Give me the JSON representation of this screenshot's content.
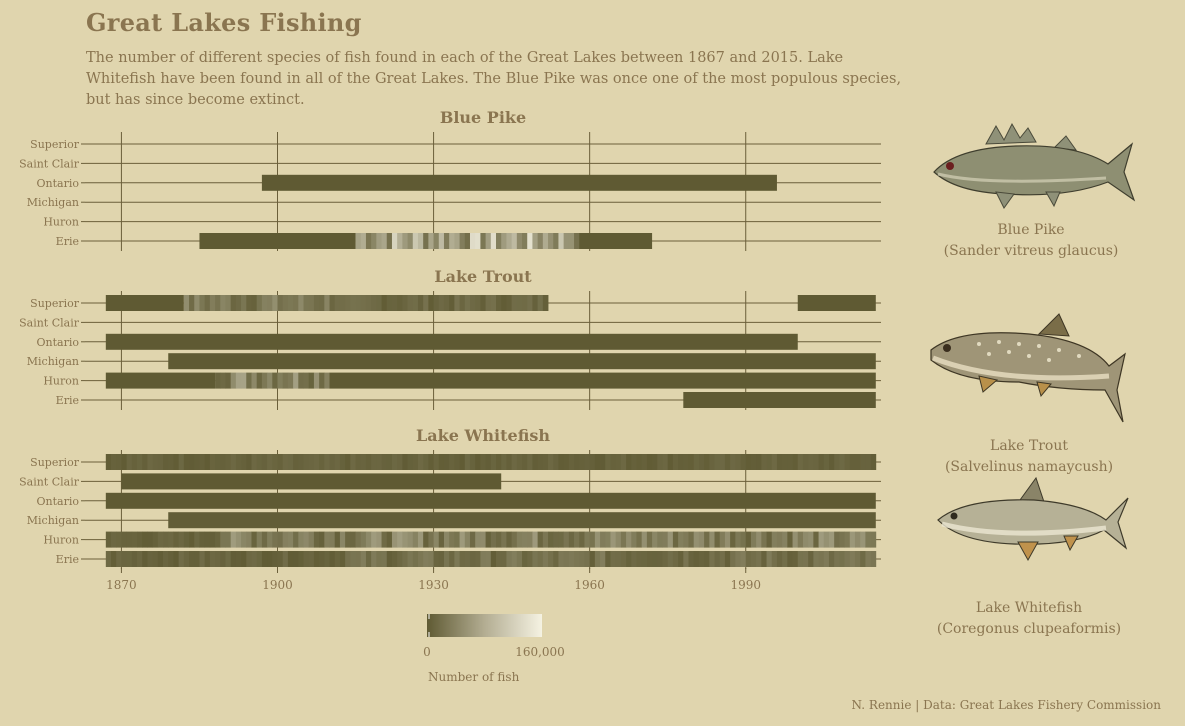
{
  "title": "Great Lakes Fishing",
  "subtitle": "The number of different species of fish found in each of the Great Lakes between 1867 and 2015. Lake Whitefish have been found in all of the Great Lakes. The Blue Pike was once one of the most populous species, but has since become extinct.",
  "caption": "N. Rennie  |  Data: Great Lakes Fishery Commission",
  "colors": {
    "background": "#e0d5ae",
    "text": "#8a7550",
    "grid": "#6b5f3a",
    "low": "#5f5a33",
    "high": "#f5f2e2"
  },
  "fish": [
    {
      "common": "Blue Pike",
      "latin": "(Sander vitreus glaucus)",
      "icon": "blue-pike-illustration"
    },
    {
      "common": "Lake Trout",
      "latin": "(Salvelinus namaycush)",
      "icon": "lake-trout-illustration"
    },
    {
      "common": "Lake Whitefish",
      "latin": "(Coregonus clupeaformis)",
      "icon": "lake-whitefish-illustration"
    }
  ],
  "chart_data": {
    "type": "heatmap",
    "xlim": [
      1863,
      2016
    ],
    "xticks": [
      1870,
      1900,
      1930,
      1960,
      1990
    ],
    "lakes": [
      "Superior",
      "Saint Clair",
      "Ontario",
      "Michigan",
      "Huron",
      "Erie"
    ],
    "legend": {
      "title": "Number of fish",
      "min_label": "0",
      "max_label": "160,000",
      "min": 0,
      "max": 160000
    },
    "panels": [
      {
        "title": "Blue Pike",
        "rows": [
          {
            "lake": "Ontario",
            "segments": [
              {
                "start": 1897,
                "end": 1996,
                "level": 0
              }
            ]
          },
          {
            "lake": "Erie",
            "segments": [
              {
                "start": 1885,
                "end": 1915,
                "level": 0
              },
              {
                "start": 1915,
                "end": 1958,
                "level": 0.45,
                "varied": true
              },
              {
                "start": 1958,
                "end": 1972,
                "level": 0
              }
            ]
          }
        ]
      },
      {
        "title": "Lake Trout",
        "rows": [
          {
            "lake": "Superior",
            "segments": [
              {
                "start": 1867,
                "end": 1882,
                "level": 0
              },
              {
                "start": 1882,
                "end": 1912,
                "level": 0.18,
                "varied": true
              },
              {
                "start": 1912,
                "end": 1952,
                "level": 0.08,
                "varied": true
              },
              {
                "start": 2000,
                "end": 2015,
                "level": 0
              }
            ]
          },
          {
            "lake": "Ontario",
            "segments": [
              {
                "start": 1867,
                "end": 2000,
                "level": 0
              }
            ]
          },
          {
            "lake": "Michigan",
            "segments": [
              {
                "start": 1879,
                "end": 2015,
                "level": 0
              }
            ]
          },
          {
            "lake": "Huron",
            "segments": [
              {
                "start": 1867,
                "end": 1888,
                "level": 0
              },
              {
                "start": 1888,
                "end": 1910,
                "level": 0.28,
                "varied": true
              },
              {
                "start": 1910,
                "end": 2015,
                "level": 0
              }
            ]
          },
          {
            "lake": "Erie",
            "segments": [
              {
                "start": 1978,
                "end": 2015,
                "level": 0
              }
            ]
          }
        ]
      },
      {
        "title": "Lake Whitefish",
        "rows": [
          {
            "lake": "Superior",
            "segments": [
              {
                "start": 1867,
                "end": 2015,
                "level": 0.05,
                "varied": true
              }
            ]
          },
          {
            "lake": "Saint Clair",
            "segments": [
              {
                "start": 1870,
                "end": 1943,
                "level": 0
              }
            ]
          },
          {
            "lake": "Ontario",
            "segments": [
              {
                "start": 1867,
                "end": 2015,
                "level": 0
              }
            ]
          },
          {
            "lake": "Michigan",
            "segments": [
              {
                "start": 1879,
                "end": 2015,
                "level": 0.02
              }
            ]
          },
          {
            "lake": "Huron",
            "segments": [
              {
                "start": 1867,
                "end": 1888,
                "level": 0.05,
                "varied": true
              },
              {
                "start": 1888,
                "end": 2015,
                "level": 0.22,
                "varied": true
              }
            ]
          },
          {
            "lake": "Erie",
            "segments": [
              {
                "start": 1867,
                "end": 1912,
                "level": 0.06,
                "varied": true
              },
              {
                "start": 1912,
                "end": 2015,
                "level": 0.12,
                "varied": true
              }
            ]
          }
        ]
      }
    ]
  }
}
